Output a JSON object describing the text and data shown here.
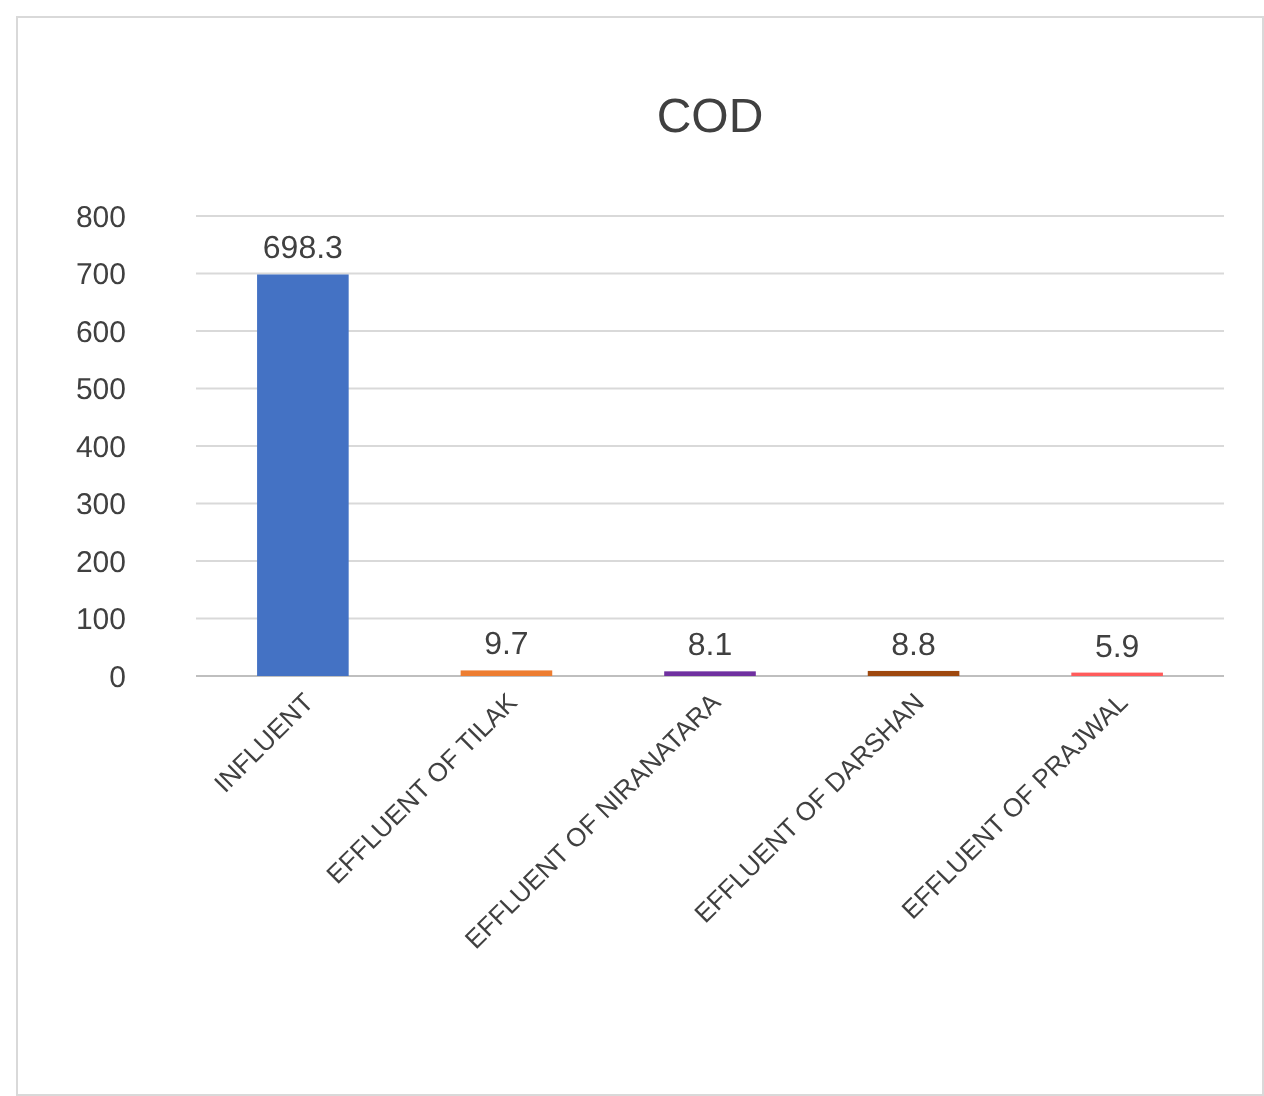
{
  "chart_data": {
    "type": "bar",
    "title": "COD",
    "categories": [
      "INFLUENT",
      "EFFLUENT OF TILAK",
      "EFFLUENT OF NIRANATARA",
      "EFFLUENT OF DARSHAN",
      "EFFLUENT OF PRAJWAL"
    ],
    "values": [
      698.3,
      9.7,
      8.1,
      8.8,
      5.9
    ],
    "colors": [
      "#4472c4",
      "#ed7d31",
      "#7030a0",
      "#9e480e",
      "#ff5b5b"
    ],
    "ylim": [
      0,
      800
    ],
    "yticks": [
      0,
      100,
      200,
      300,
      400,
      500,
      600,
      700,
      800
    ],
    "grid": "y",
    "data_labels": true
  }
}
